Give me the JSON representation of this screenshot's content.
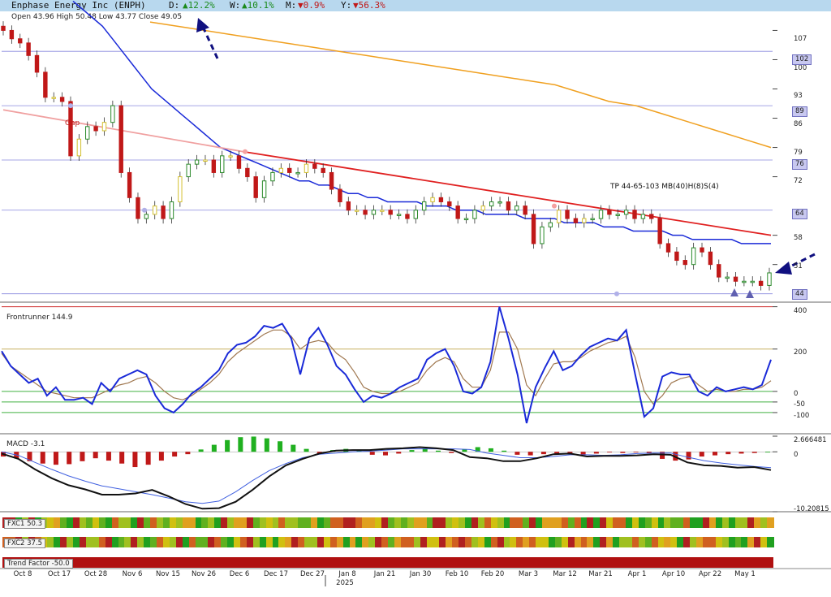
{
  "header": {
    "title": "Enphase Energy Inc (ENPH)",
    "d_label": "D:",
    "d_value": "▲12.2%",
    "w_label": "W:",
    "w_value": "▲10.1%",
    "m_label": "M:",
    "m_value": "▼0.9%",
    "y_label": "Y:",
    "y_value": "▼56.3%"
  },
  "ohlc": "Open 43.96  High 50.48  Low 43.77  Close 49.05",
  "colors": {
    "up": "#2a8a2a",
    "down": "#c01818",
    "ma_blue": "#1a2ad8",
    "ma_orange": "#f0a020",
    "trend_red": "#e02020",
    "arrow": "#101080"
  },
  "annotations": {
    "gap": "Gap",
    "tp": "TP 44-65-103 MB(40)H(8)S(4)"
  },
  "indicators": {
    "frontrunner": "Frontrunner 144.9",
    "macd": "MACD -3.1",
    "fxc1": "FXC1 50.3",
    "fxc2": "FXC2 37.5",
    "trend": "Trend Factor -50.0"
  },
  "year_label": "2025",
  "chart_data": [
    {
      "type": "candlestick",
      "x_ticks": [
        "Oct 8",
        "Oct 17",
        "Oct 28",
        "Nov 6",
        "Nov 15",
        "Nov 26",
        "Dec 6",
        "Dec 17",
        "Dec 27",
        "Jan 8",
        "Jan 21",
        "Jan 30",
        "Feb 10",
        "Feb 20",
        "Mar 3",
        "Mar 12",
        "Mar 21",
        "Apr 1",
        "Apr 10",
        "Apr 22",
        "May 1"
      ],
      "y_ticks": [
        107,
        100,
        93,
        86,
        79,
        72,
        58,
        51
      ],
      "marked_levels": [
        "102",
        "89",
        "76",
        "64",
        "44"
      ],
      "ylim": [
        42,
        110
      ],
      "close": [
        107,
        105,
        104,
        101,
        97,
        91,
        91,
        90,
        77,
        81,
        84,
        83,
        85,
        89,
        73,
        67,
        62,
        63,
        65,
        62,
        66,
        72,
        75,
        76,
        76,
        73,
        77,
        77,
        74,
        72,
        67,
        71,
        73,
        74,
        73,
        73,
        75,
        74,
        73,
        69,
        66,
        64,
        64,
        63,
        64,
        64,
        63,
        63,
        62,
        64,
        66,
        67,
        66,
        65,
        62,
        62,
        64,
        65,
        66,
        66,
        64,
        65,
        63,
        56,
        60,
        61,
        64,
        62,
        61,
        62,
        62,
        64,
        63,
        63,
        64,
        62,
        63,
        62,
        56,
        54,
        52,
        51,
        55,
        54,
        51,
        48,
        48,
        47,
        47,
        47,
        46,
        49
      ],
      "ma_blue": [
        114,
        112,
        110,
        108,
        105,
        102,
        99,
        96,
        93,
        91,
        89,
        87,
        85,
        83,
        81,
        79,
        78,
        77,
        76,
        75,
        74,
        73,
        72,
        71,
        71,
        70,
        70,
        69,
        68,
        68,
        67,
        67,
        66,
        66,
        66,
        66,
        65,
        65,
        65,
        64,
        64,
        64,
        63,
        63,
        63,
        63,
        62,
        62,
        62,
        62,
        61,
        61,
        61,
        61,
        60,
        60,
        60,
        59,
        59,
        59,
        59,
        58,
        58,
        57,
        57,
        57,
        57,
        57,
        56,
        56,
        56,
        56
      ],
      "ma_orange": [
        109,
        108,
        107,
        106,
        105,
        104,
        103,
        102,
        101,
        100,
        99,
        98,
        97,
        96,
        95,
        94,
        92,
        90,
        89,
        87,
        85,
        83,
        81,
        79
      ],
      "trend_line": {
        "from": 78,
        "to": 58
      }
    },
    {
      "type": "line",
      "name": "Frontrunner",
      "levels": [
        400,
        200,
        0,
        -50,
        -100
      ],
      "y_ticks": [
        400,
        200,
        0,
        -50,
        -100
      ],
      "ylim": [
        -200,
        410
      ],
      "values": [
        190,
        120,
        80,
        40,
        60,
        -20,
        20,
        -40,
        -40,
        -30,
        -60,
        40,
        0,
        60,
        80,
        100,
        80,
        -20,
        -80,
        -100,
        -60,
        -10,
        20,
        60,
        100,
        180,
        220,
        230,
        260,
        310,
        300,
        320,
        250,
        80,
        250,
        300,
        220,
        120,
        80,
        10,
        -50,
        -20,
        -30,
        -10,
        20,
        40,
        60,
        150,
        180,
        200,
        120,
        0,
        -10,
        20,
        140,
        400,
        250,
        80,
        -150,
        20,
        110,
        190,
        100,
        120,
        170,
        210,
        230,
        250,
        240,
        290,
        80,
        -120,
        -80,
        70,
        90,
        80,
        80,
        0,
        -20,
        20,
        0,
        10,
        20,
        10,
        30,
        150
      ],
      "signal": [
        180,
        120,
        90,
        60,
        30,
        0,
        -10,
        -20,
        -30,
        -30,
        -30,
        -10,
        10,
        30,
        40,
        60,
        70,
        40,
        0,
        -30,
        -40,
        -20,
        10,
        40,
        80,
        140,
        180,
        210,
        240,
        270,
        290,
        290,
        260,
        200,
        230,
        240,
        230,
        180,
        150,
        90,
        20,
        0,
        -10,
        -10,
        0,
        20,
        40,
        100,
        140,
        160,
        140,
        60,
        20,
        20,
        100,
        280,
        280,
        200,
        30,
        -20,
        60,
        130,
        140,
        140,
        160,
        190,
        210,
        230,
        240,
        260,
        160,
        0,
        -60,
        -20,
        40,
        60,
        70,
        30,
        0,
        10,
        0,
        0,
        10,
        10,
        20,
        50
      ]
    },
    {
      "type": "bar",
      "name": "MACD",
      "y_ticks": [
        "2.666481",
        "0",
        "-10.20815"
      ],
      "ylim": [
        -10.20815,
        2.666481
      ],
      "histogram": [
        -0.8,
        -1.1,
        -1.6,
        -2.0,
        -2.2,
        -2.1,
        -1.6,
        -1.1,
        -1.5,
        -2.0,
        -2.6,
        -2.2,
        -1.5,
        -0.8,
        -0.4,
        0.4,
        1.2,
        2.0,
        2.5,
        2.6,
        2.3,
        1.8,
        1.2,
        0.5,
        -0.3,
        0.3,
        0.5,
        0.2,
        -0.5,
        -0.6,
        -0.3,
        0.3,
        0.6,
        0.2,
        -0.2,
        0.4,
        0.8,
        0.6,
        0.2,
        -0.5,
        -0.6,
        -0.4,
        -0.3,
        -0.4,
        -0.5,
        -0.3,
        -0.1,
        -0.2,
        -0.1,
        -0.2,
        -1.2,
        -1.5,
        -1.3,
        -0.8,
        -0.6,
        -0.4,
        -0.3,
        -0.2,
        0.0
      ],
      "macd_line": [
        -0.3,
        -1.2,
        -3.0,
        -4.5,
        -5.7,
        -6.4,
        -7.3,
        -7.3,
        -7.1,
        -6.5,
        -7.6,
        -8.9,
        -9.7,
        -9.6,
        -8.5,
        -6.5,
        -4.2,
        -2.3,
        -1.2,
        -0.3,
        0.2,
        0.3,
        0.3,
        0.5,
        0.6,
        0.8,
        0.6,
        0.3,
        -0.9,
        -1.1,
        -1.6,
        -1.6,
        -1.1,
        -0.4,
        -0.3,
        -0.8,
        -0.7,
        -0.7,
        -0.6,
        -0.4,
        -0.5,
        -1.8,
        -2.3,
        -2.4,
        -2.7,
        -2.6,
        -3.1
      ],
      "signal_line": [
        0,
        -0.6,
        -1.8,
        -3.0,
        -4.1,
        -5.0,
        -5.8,
        -6.3,
        -6.8,
        -7.3,
        -7.9,
        -8.5,
        -8.8,
        -8.4,
        -6.8,
        -4.9,
        -3.2,
        -2.0,
        -1.0,
        -0.4,
        -0.2,
        0.0,
        0.1,
        0.3,
        0.5,
        0.5,
        0.5,
        0.5,
        0.4,
        -0.2,
        -0.6,
        -1.0,
        -1.0,
        -0.8,
        -0.5,
        -0.5,
        -0.6,
        -0.5,
        -0.3,
        -0.2,
        -0.2,
        -0.9,
        -1.5,
        -1.9,
        -2.2,
        -2.5,
        -2.7
      ]
    }
  ]
}
